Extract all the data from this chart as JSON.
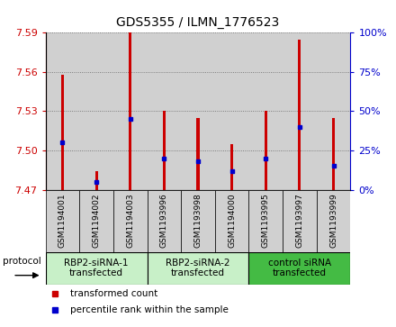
{
  "title": "GDS5355 / ILMN_1776523",
  "samples": [
    "GSM1194001",
    "GSM1194002",
    "GSM1194003",
    "GSM1193996",
    "GSM1193998",
    "GSM1194000",
    "GSM1193995",
    "GSM1193997",
    "GSM1193999"
  ],
  "red_values": [
    7.558,
    7.484,
    7.592,
    7.53,
    7.525,
    7.505,
    7.53,
    7.585,
    7.525
  ],
  "blue_values": [
    30,
    5,
    45,
    20,
    18,
    12,
    20,
    40,
    15
  ],
  "ylim_left": [
    7.47,
    7.59
  ],
  "ylim_right": [
    0,
    100
  ],
  "yticks_left": [
    7.47,
    7.5,
    7.53,
    7.56,
    7.59
  ],
  "yticks_right": [
    0,
    25,
    50,
    75,
    100
  ],
  "bar_bottom": 7.47,
  "groups": [
    {
      "label": "RBP2-siRNA-1\ntransfected",
      "indices": [
        0,
        1,
        2
      ]
    },
    {
      "label": "RBP2-siRNA-2\ntransfected",
      "indices": [
        3,
        4,
        5
      ]
    },
    {
      "label": "control siRNA\ntransfected",
      "indices": [
        6,
        7,
        8
      ]
    }
  ],
  "group_colors": [
    "#c8f0c8",
    "#c8f0c8",
    "#44bb44"
  ],
  "protocol_label": "protocol",
  "red_color": "#cc0000",
  "blue_color": "#0000cc",
  "sample_bg_color": "#d0d0d0",
  "white": "#ffffff",
  "grid_color": "#666666",
  "title_fontsize": 10,
  "axis_fontsize": 8,
  "sample_fontsize": 6.5,
  "group_fontsize": 7.5,
  "legend_fontsize": 7.5,
  "bar_width": 0.08,
  "legend_red": "transformed count",
  "legend_blue": "percentile rank within the sample"
}
